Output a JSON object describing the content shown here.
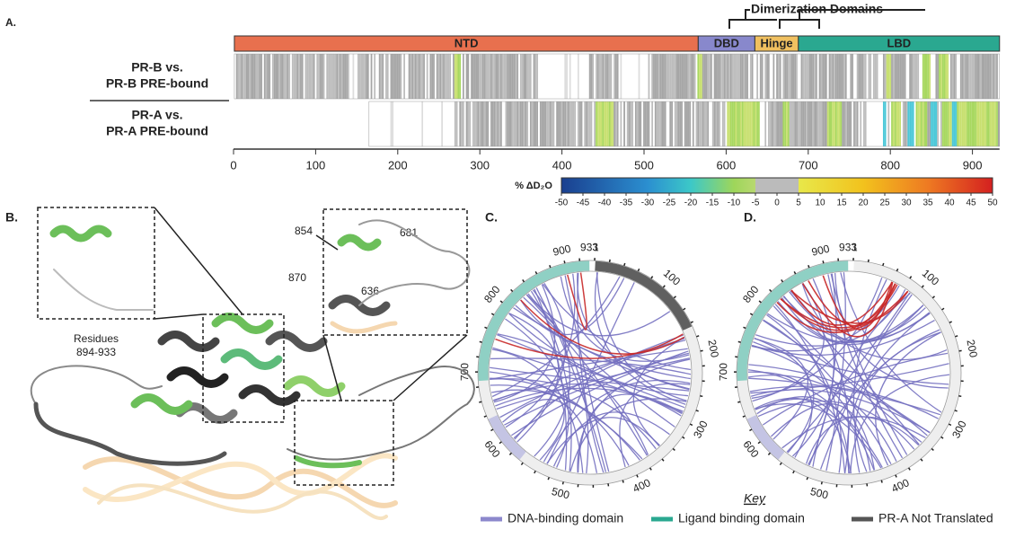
{
  "panel_a": {
    "label": "A.",
    "dimerization": "Dimerization Domains",
    "domains": [
      "NTD",
      "DBD",
      "Hinge",
      "LBD"
    ],
    "rows": [
      [
        "PR-B vs.",
        "PR-B PRE-bound"
      ],
      [
        "PR-A vs.",
        "PR-A PRE-bound"
      ]
    ],
    "xticks": [
      0,
      100,
      200,
      300,
      400,
      500,
      600,
      700,
      800,
      900
    ],
    "colorbar": {
      "title": "% ΔD₂O",
      "ticks": [
        -50,
        -45,
        -40,
        -35,
        -30,
        -25,
        -20,
        -15,
        -10,
        -5,
        0,
        5,
        10,
        15,
        20,
        25,
        30,
        35,
        40,
        45,
        50
      ]
    }
  },
  "panel_b": {
    "label": "B.",
    "residues": [
      "854",
      "681",
      "870",
      "636"
    ],
    "inset_caption": [
      "Residues",
      "894-933"
    ]
  },
  "panel_c": {
    "label": "C.",
    "ticks": [
      933,
      1,
      100,
      200,
      300,
      400,
      500,
      600,
      700,
      800,
      900
    ]
  },
  "panel_d": {
    "label": "D.",
    "ticks": [
      933,
      1,
      100,
      200,
      300,
      400,
      500,
      600,
      700,
      800,
      900
    ]
  },
  "key": {
    "title": "Key",
    "items": [
      "DNA-binding domain",
      "Ligand binding domain",
      "PR-A Not Translated"
    ]
  }
}
